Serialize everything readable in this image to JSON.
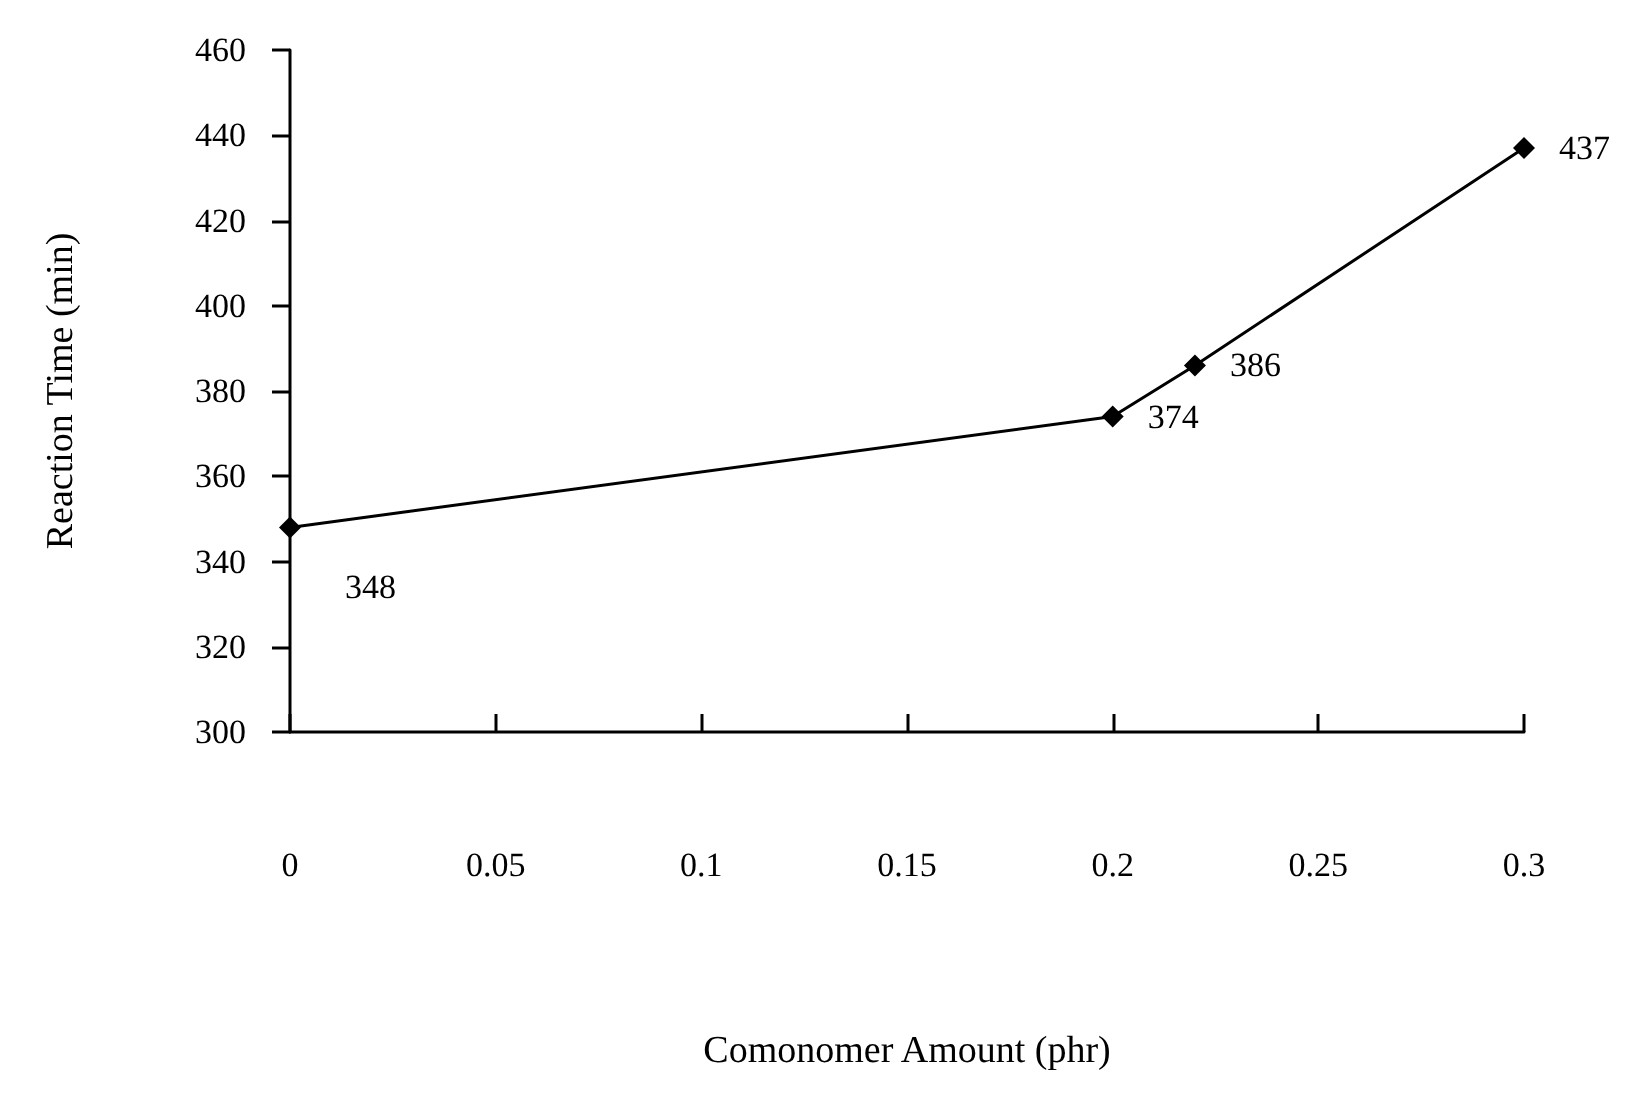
{
  "chart_data": {
    "type": "line",
    "xlabel": "Comonomer Amount (phr)",
    "ylabel": "Reaction Time (min)",
    "x": [
      0,
      0.2,
      0.22,
      0.3
    ],
    "series": [
      {
        "color": "#000000",
        "values": [
          348,
          374,
          386,
          437
        ]
      }
    ],
    "xlim": [
      0,
      0.3
    ],
    "xticks": [
      0,
      0.05,
      0.1,
      0.15,
      0.2,
      0.25,
      0.3
    ],
    "ylim": [
      300,
      460
    ],
    "yticks": [
      300,
      320,
      340,
      360,
      380,
      400,
      420,
      440,
      460
    ],
    "marker": "diamond",
    "line_style": "solid",
    "data_labels": true
  }
}
